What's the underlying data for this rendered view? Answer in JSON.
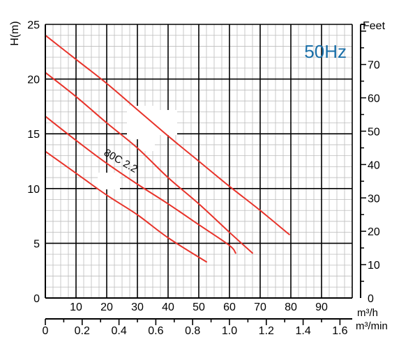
{
  "chart_data": {
    "type": "line",
    "title": "50Hz",
    "title_color": "#1a6fa8",
    "curve_label": "80C 2.2",
    "ylabel_left": "H(m)",
    "ylabel_right": "Feet",
    "xlabel_m3h": "m³/h",
    "xlabel_m3min": "m³/min",
    "x_m3h": {
      "range": [
        0,
        100
      ],
      "ticks": [
        10,
        20,
        30,
        40,
        50,
        60,
        70,
        80,
        90
      ]
    },
    "x_m3min": {
      "range": [
        0,
        1.667
      ],
      "ticks": [
        "0",
        "0.2",
        "0.4",
        "0.6",
        "0.8",
        "1.0",
        "1.2",
        "1.4",
        "1.6"
      ]
    },
    "y_m": {
      "range": [
        0,
        25
      ],
      "ticks": [
        0,
        5,
        10,
        15,
        20,
        25
      ]
    },
    "y_feet": {
      "ticks": [
        0,
        10,
        20,
        30,
        40,
        50,
        60,
        70
      ]
    },
    "grid": true,
    "line_color": "#e8332a",
    "series": [
      {
        "x": [
          0,
          10,
          20,
          30,
          40,
          50,
          60,
          70,
          79.5
        ],
        "y": [
          24.0,
          21.8,
          19.6,
          17.2,
          14.8,
          12.5,
          10.2,
          8.0,
          5.8
        ]
      },
      {
        "x": [
          0,
          10,
          20,
          30,
          40,
          50,
          60,
          67.5
        ],
        "y": [
          20.6,
          18.4,
          16.0,
          13.7,
          11.0,
          8.6,
          6.0,
          4.1
        ]
      },
      {
        "x": [
          0,
          10,
          20,
          30,
          40,
          50,
          60,
          62
        ],
        "y": [
          16.6,
          14.4,
          12.3,
          10.4,
          8.6,
          6.7,
          4.8,
          4.1
        ]
      },
      {
        "x": [
          0,
          10,
          20,
          30,
          40,
          52.5
        ],
        "y": [
          13.4,
          11.4,
          9.4,
          7.6,
          5.5,
          3.3
        ]
      }
    ]
  }
}
